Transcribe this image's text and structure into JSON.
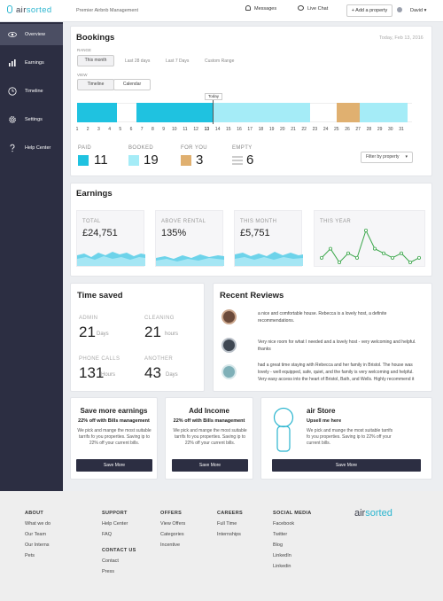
{
  "topbar": {
    "logo_prefix": "air",
    "logo_suffix": "sorted",
    "subtitle": "Premier Airbnb Management",
    "messages": "Messages",
    "live_chat": "Live Chat",
    "add_property": "+ Add a property",
    "user": "David"
  },
  "sidebar": {
    "items": [
      {
        "label": "Overview",
        "icon": "eye-icon"
      },
      {
        "label": "Earnings",
        "icon": "bar-chart-icon"
      },
      {
        "label": "Timeline",
        "icon": "clock-icon"
      },
      {
        "label": "Settings",
        "icon": "gear-icon"
      },
      {
        "label": "Help Center",
        "icon": "question-icon"
      }
    ]
  },
  "bookings": {
    "title": "Bookings",
    "date": "Today, Feb 13, 2016",
    "range_label": "RANGE",
    "ranges": [
      "This month",
      "Last 28 days",
      "Last 7 Days",
      "Custom Range"
    ],
    "view_label": "VIEW",
    "views": [
      "Timeline",
      "Calendar"
    ],
    "today_tag": "Today",
    "days": [
      "1",
      "2",
      "3",
      "4",
      "5",
      "6",
      "7",
      "8",
      "9",
      "10",
      "11",
      "12",
      "13",
      "14",
      "15",
      "16",
      "17",
      "18",
      "19",
      "20",
      "21",
      "22",
      "23",
      "24",
      "25",
      "26",
      "27",
      "28",
      "29",
      "30",
      "31"
    ],
    "stats": [
      {
        "label": "PAID",
        "value": "11",
        "color": "#1fc2e0"
      },
      {
        "label": "BOOKED",
        "value": "19",
        "color": "#a5ecf7"
      },
      {
        "label": "FOR YOU",
        "value": "3",
        "color": "#e0b070"
      },
      {
        "label": "EMPTY",
        "value": "6",
        "color": "#bbbbbb"
      }
    ],
    "filter": "Filter by property"
  },
  "earnings": {
    "title": "Earnings",
    "boxes": [
      {
        "label": "TOTAL",
        "value": "£24,751"
      },
      {
        "label": "ABOVE RENTAL",
        "value": "135%"
      },
      {
        "label": "THIS MONTH",
        "value": "£5,751"
      },
      {
        "label": "THIS YEAR",
        "value": ""
      }
    ]
  },
  "time_saved": {
    "title": "Time saved",
    "items": [
      {
        "label": "ADMIN",
        "value": "21",
        "unit": "Days"
      },
      {
        "label": "CLEANING",
        "value": "21",
        "unit": "hours"
      },
      {
        "label": "PHONE CALLS",
        "value": "131",
        "unit": "Hours"
      },
      {
        "label": "ANOTHER",
        "value": "43",
        "unit": "Days"
      }
    ]
  },
  "reviews": {
    "title": "Recent Reviews",
    "items": [
      {
        "text": "a nice and comfortable house. Rebecca is a lovely host, a definite recommendations."
      },
      {
        "text": "Very nice room for what I needed and a lovely host - very welcoming and helpful. thanks"
      },
      {
        "text": "had a great time staying with Rebecca and her family in Bristol. The house was lovely - well equipped, safe, quiet, and the family is very welcoming and helpful. Very easy access into the heart of Bristol, Bath, and Wells. Highly recommend it"
      }
    ]
  },
  "promos": [
    {
      "title": "Save more earnings",
      "sub": "22% off with Bills management",
      "text": "We pick and mange the most suitable tarrifs fo you properties. Saving ip to 22% off your current bills.",
      "button": "Save More"
    },
    {
      "title": "Add Income",
      "sub": "22% off with Bills management",
      "text": "We pick and mange the most suitable tarrifs fo you properties. Saving ip to 22% off your current bills.",
      "button": "Save More"
    },
    {
      "title": "air Store",
      "sub": "Upsell me here",
      "text": "We pick and mange the most suitable tarrifs fo you properties. Saving ip to 22% off your current bills.",
      "button": "Save More"
    }
  ],
  "footer": {
    "about": {
      "title": "ABOUT",
      "links": [
        "What we do",
        "Our Team",
        "Our Interns",
        "Pets"
      ]
    },
    "support": {
      "title": "SUPPORT",
      "links": [
        "Help Center",
        "FAQ"
      ]
    },
    "contact": {
      "title": "CONTACT US",
      "links": [
        "Contact",
        "Press"
      ]
    },
    "offers": {
      "title": "OFFERS",
      "links": [
        "View Offers",
        "Categories",
        "Incentive"
      ]
    },
    "careers": {
      "title": "CAREERS",
      "links": [
        "Full Time",
        "Internships"
      ]
    },
    "social": {
      "title": "SOCIAL MEDIA",
      "links": [
        "Facebook",
        "Twitter",
        "Blog",
        "LinkedIn",
        "Linkedin"
      ]
    },
    "logo_prefix": "air",
    "logo_suffix": "sorted"
  },
  "chart_data": {
    "type": "line",
    "x": [
      1,
      2,
      3,
      4,
      5,
      6,
      7,
      8,
      9,
      10,
      11,
      12
    ],
    "values": [
      3,
      5,
      2,
      4,
      3,
      9,
      5,
      4,
      3,
      4,
      2,
      3
    ],
    "title": "THIS YEAR"
  }
}
